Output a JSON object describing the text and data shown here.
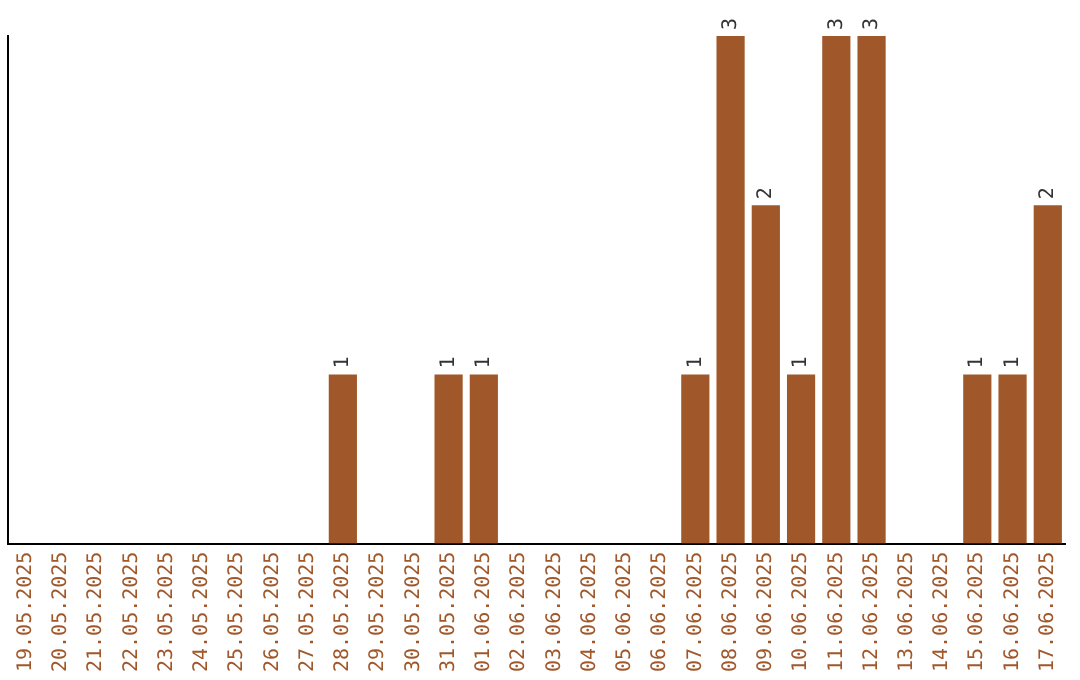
{
  "chart_data": {
    "type": "bar",
    "categories": [
      "19.05.2025",
      "20.05.2025",
      "21.05.2025",
      "22.05.2025",
      "23.05.2025",
      "24.05.2025",
      "25.05.2025",
      "26.05.2025",
      "27.05.2025",
      "28.05.2025",
      "29.05.2025",
      "30.05.2025",
      "31.05.2025",
      "01.06.2025",
      "02.06.2025",
      "03.06.2025",
      "04.06.2025",
      "05.06.2025",
      "06.06.2025",
      "07.06.2025",
      "08.06.2025",
      "09.06.2025",
      "10.06.2025",
      "11.06.2025",
      "12.06.2025",
      "13.06.2025",
      "14.06.2025",
      "15.06.2025",
      "16.06.2025",
      "17.06.2025"
    ],
    "values": [
      0,
      0,
      0,
      0,
      0,
      0,
      0,
      0,
      0,
      1,
      0,
      0,
      1,
      1,
      0,
      0,
      0,
      0,
      0,
      1,
      3,
      2,
      1,
      3,
      3,
      0,
      0,
      1,
      1,
      2
    ],
    "value_labels": [
      null,
      null,
      null,
      null,
      null,
      null,
      null,
      null,
      null,
      "1",
      null,
      null,
      "1",
      "1",
      null,
      null,
      null,
      null,
      null,
      "1",
      "3",
      "2",
      "1",
      "3",
      "3",
      null,
      null,
      "1",
      "1",
      "2"
    ],
    "color": "#a0582b",
    "grid": false,
    "legend": false,
    "tick_labels": "x"
  }
}
